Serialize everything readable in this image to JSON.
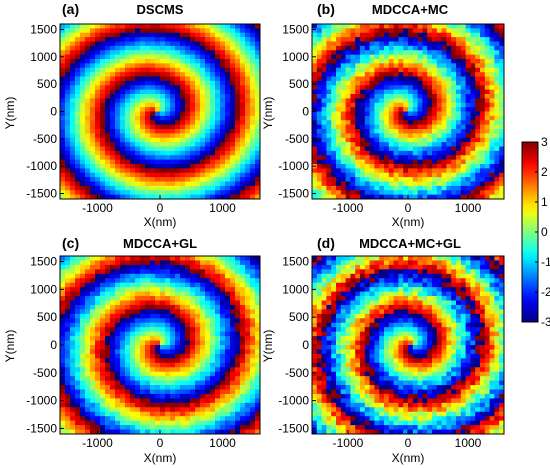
{
  "figure": {
    "colorbar": {
      "ticks": [
        "3",
        "2",
        "1",
        "0",
        "-1",
        "-2",
        "-3"
      ],
      "range": [
        -3,
        3
      ],
      "colormap": "jet"
    }
  },
  "chart_data": [
    {
      "type": "heatmap",
      "panel_label": "(a)",
      "title": "DSCMS",
      "xlabel": "X(nm)",
      "ylabel": "Y(nm)",
      "xlim": [
        -1600,
        1600
      ],
      "ylim": [
        -1600,
        1600
      ],
      "xticks": [
        "-1000",
        "0",
        "1000"
      ],
      "yticks": [
        "1500",
        "1000",
        "500",
        "0",
        "-500",
        "-1000",
        "-1500"
      ],
      "value_range": [
        -3,
        3
      ],
      "pattern": "spiral phase map (vortex core near origin)",
      "spiral_center": [
        -50,
        0
      ],
      "twist": 1.9,
      "noise": 0.15
    },
    {
      "type": "heatmap",
      "panel_label": "(b)",
      "title": "MDCCA+MC",
      "xlabel": "X(nm)",
      "ylabel": "Y(nm)",
      "xlim": [
        -1600,
        1600
      ],
      "ylim": [
        -1600,
        1600
      ],
      "xticks": [
        "-1000",
        "0",
        "1000"
      ],
      "yticks": [
        "1500",
        "1000",
        "500",
        "0",
        "-500",
        "-1000",
        "-1500"
      ],
      "value_range": [
        -3,
        3
      ],
      "pattern": "spiral phase map (vortex core near origin)",
      "spiral_center": [
        -40,
        30
      ],
      "twist": 2.0,
      "noise": 0.55
    },
    {
      "type": "heatmap",
      "panel_label": "(c)",
      "title": "MDCCA+GL",
      "xlabel": "X(nm)",
      "ylabel": "Y(nm)",
      "xlim": [
        -1600,
        1600
      ],
      "ylim": [
        -1600,
        1600
      ],
      "xticks": [
        "-1000",
        "0",
        "1000"
      ],
      "yticks": [
        "1500",
        "1000",
        "500",
        "0",
        "-500",
        "-1000",
        "-1500"
      ],
      "value_range": [
        -3,
        3
      ],
      "pattern": "spiral phase map (vortex core near origin)",
      "spiral_center": [
        0,
        0
      ],
      "twist": 1.9,
      "noise": 0.35
    },
    {
      "type": "heatmap",
      "panel_label": "(d)",
      "title": "MDCCA+MC+GL",
      "xlabel": "X(nm)",
      "ylabel": "Y(nm)",
      "xlim": [
        -1600,
        1600
      ],
      "ylim": [
        -1600,
        1600
      ],
      "xticks": [
        "-1000",
        "0",
        "1000"
      ],
      "yticks": [
        "1500",
        "1000",
        "500",
        "0",
        "-500",
        "-1000",
        "-1500"
      ],
      "value_range": [
        -3,
        3
      ],
      "pattern": "spiral phase map (vortex core near origin)",
      "spiral_center": [
        60,
        0
      ],
      "twist": 2.1,
      "noise": 0.7
    }
  ]
}
